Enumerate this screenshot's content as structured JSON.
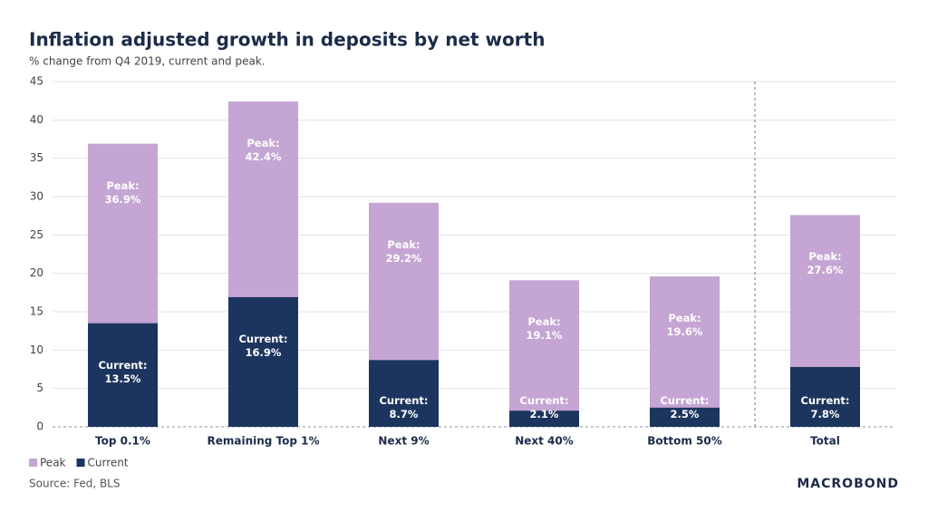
{
  "chart_data": {
    "type": "overlap_bar",
    "title": "Inflation adjusted growth in deposits by net worth",
    "subtitle": "% change from Q4 2019, current and peak.",
    "categories": [
      "Top 0.1%",
      "Remaining Top 1%",
      "Next 9%",
      "Next 40%",
      "Bottom 50%",
      "Total"
    ],
    "series": [
      {
        "name": "Peak",
        "color": "#c4a5d3",
        "values": [
          36.9,
          42.4,
          29.2,
          19.1,
          19.6,
          27.6
        ],
        "value_labels": [
          "Peak:\n36.9%",
          "Peak:\n42.4%",
          "Peak:\n29.2%",
          "Peak:\n19.1%",
          "Peak:\n19.6%",
          "Peak:\n27.6%"
        ]
      },
      {
        "name": "Current",
        "color": "#1c355e",
        "values": [
          13.5,
          16.9,
          8.7,
          2.1,
          2.5,
          7.8
        ],
        "value_labels": [
          "Current:\n13.5%",
          "Current:\n16.9%",
          "Current:\n8.7%",
          "Current:\n2.1%",
          "Current:\n2.5%",
          "Current:\n7.8%"
        ]
      }
    ],
    "ylim": [
      0,
      45
    ],
    "yticks": [
      0,
      5,
      10,
      15,
      20,
      25,
      30,
      35,
      40,
      45
    ],
    "grid": true,
    "legend": "bottom-left",
    "source": "Source: Fed, BLS",
    "brand": "MACROBOND"
  }
}
